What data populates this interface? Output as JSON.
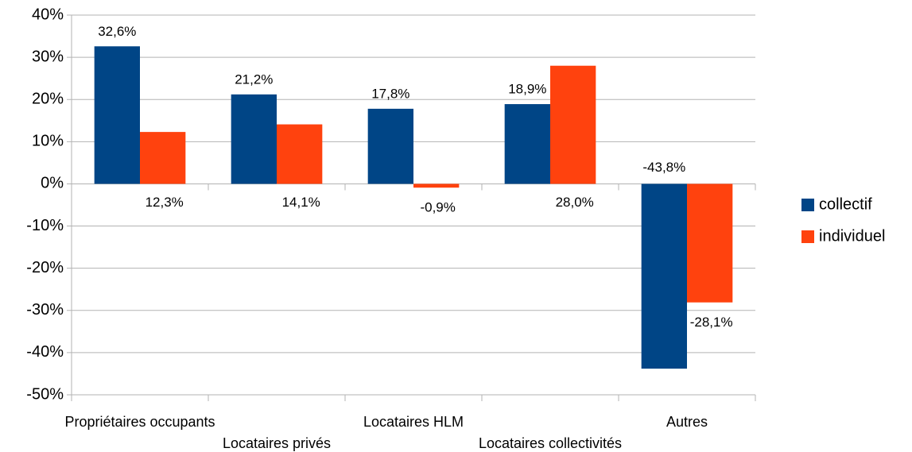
{
  "chart_data": {
    "type": "bar",
    "categories": [
      "Propriétaires occupants",
      "Locataires privés",
      "Locataires HLM",
      "Locataires collectivités",
      "Autres"
    ],
    "series": [
      {
        "name": "collectif",
        "color": "#004586",
        "values": [
          32.6,
          21.2,
          17.8,
          18.9,
          -43.8
        ],
        "value_labels": [
          "32,6%",
          "21,2%",
          "17,8%",
          "18,9%",
          "-43,8%"
        ]
      },
      {
        "name": "individuel",
        "color": "#ff420e",
        "values": [
          12.3,
          14.1,
          -0.9,
          28.0,
          -28.1
        ],
        "value_labels": [
          "12,3%",
          "14,1%",
          "-0,9%",
          "28,0%",
          "-28,1%"
        ]
      }
    ],
    "ylim": [
      -50,
      40
    ],
    "yticks": [
      {
        "value": -50,
        "label": "-50%"
      },
      {
        "value": -40,
        "label": "-40%"
      },
      {
        "value": -30,
        "label": "-30%"
      },
      {
        "value": -20,
        "label": "-20%"
      },
      {
        "value": -10,
        "label": "-10%"
      },
      {
        "value": 0,
        "label": "0%"
      },
      {
        "value": 10,
        "label": "10%"
      },
      {
        "value": 20,
        "label": "20%"
      },
      {
        "value": 30,
        "label": "30%"
      },
      {
        "value": 40,
        "label": "40%"
      }
    ],
    "grid": true,
    "legend": "right"
  }
}
